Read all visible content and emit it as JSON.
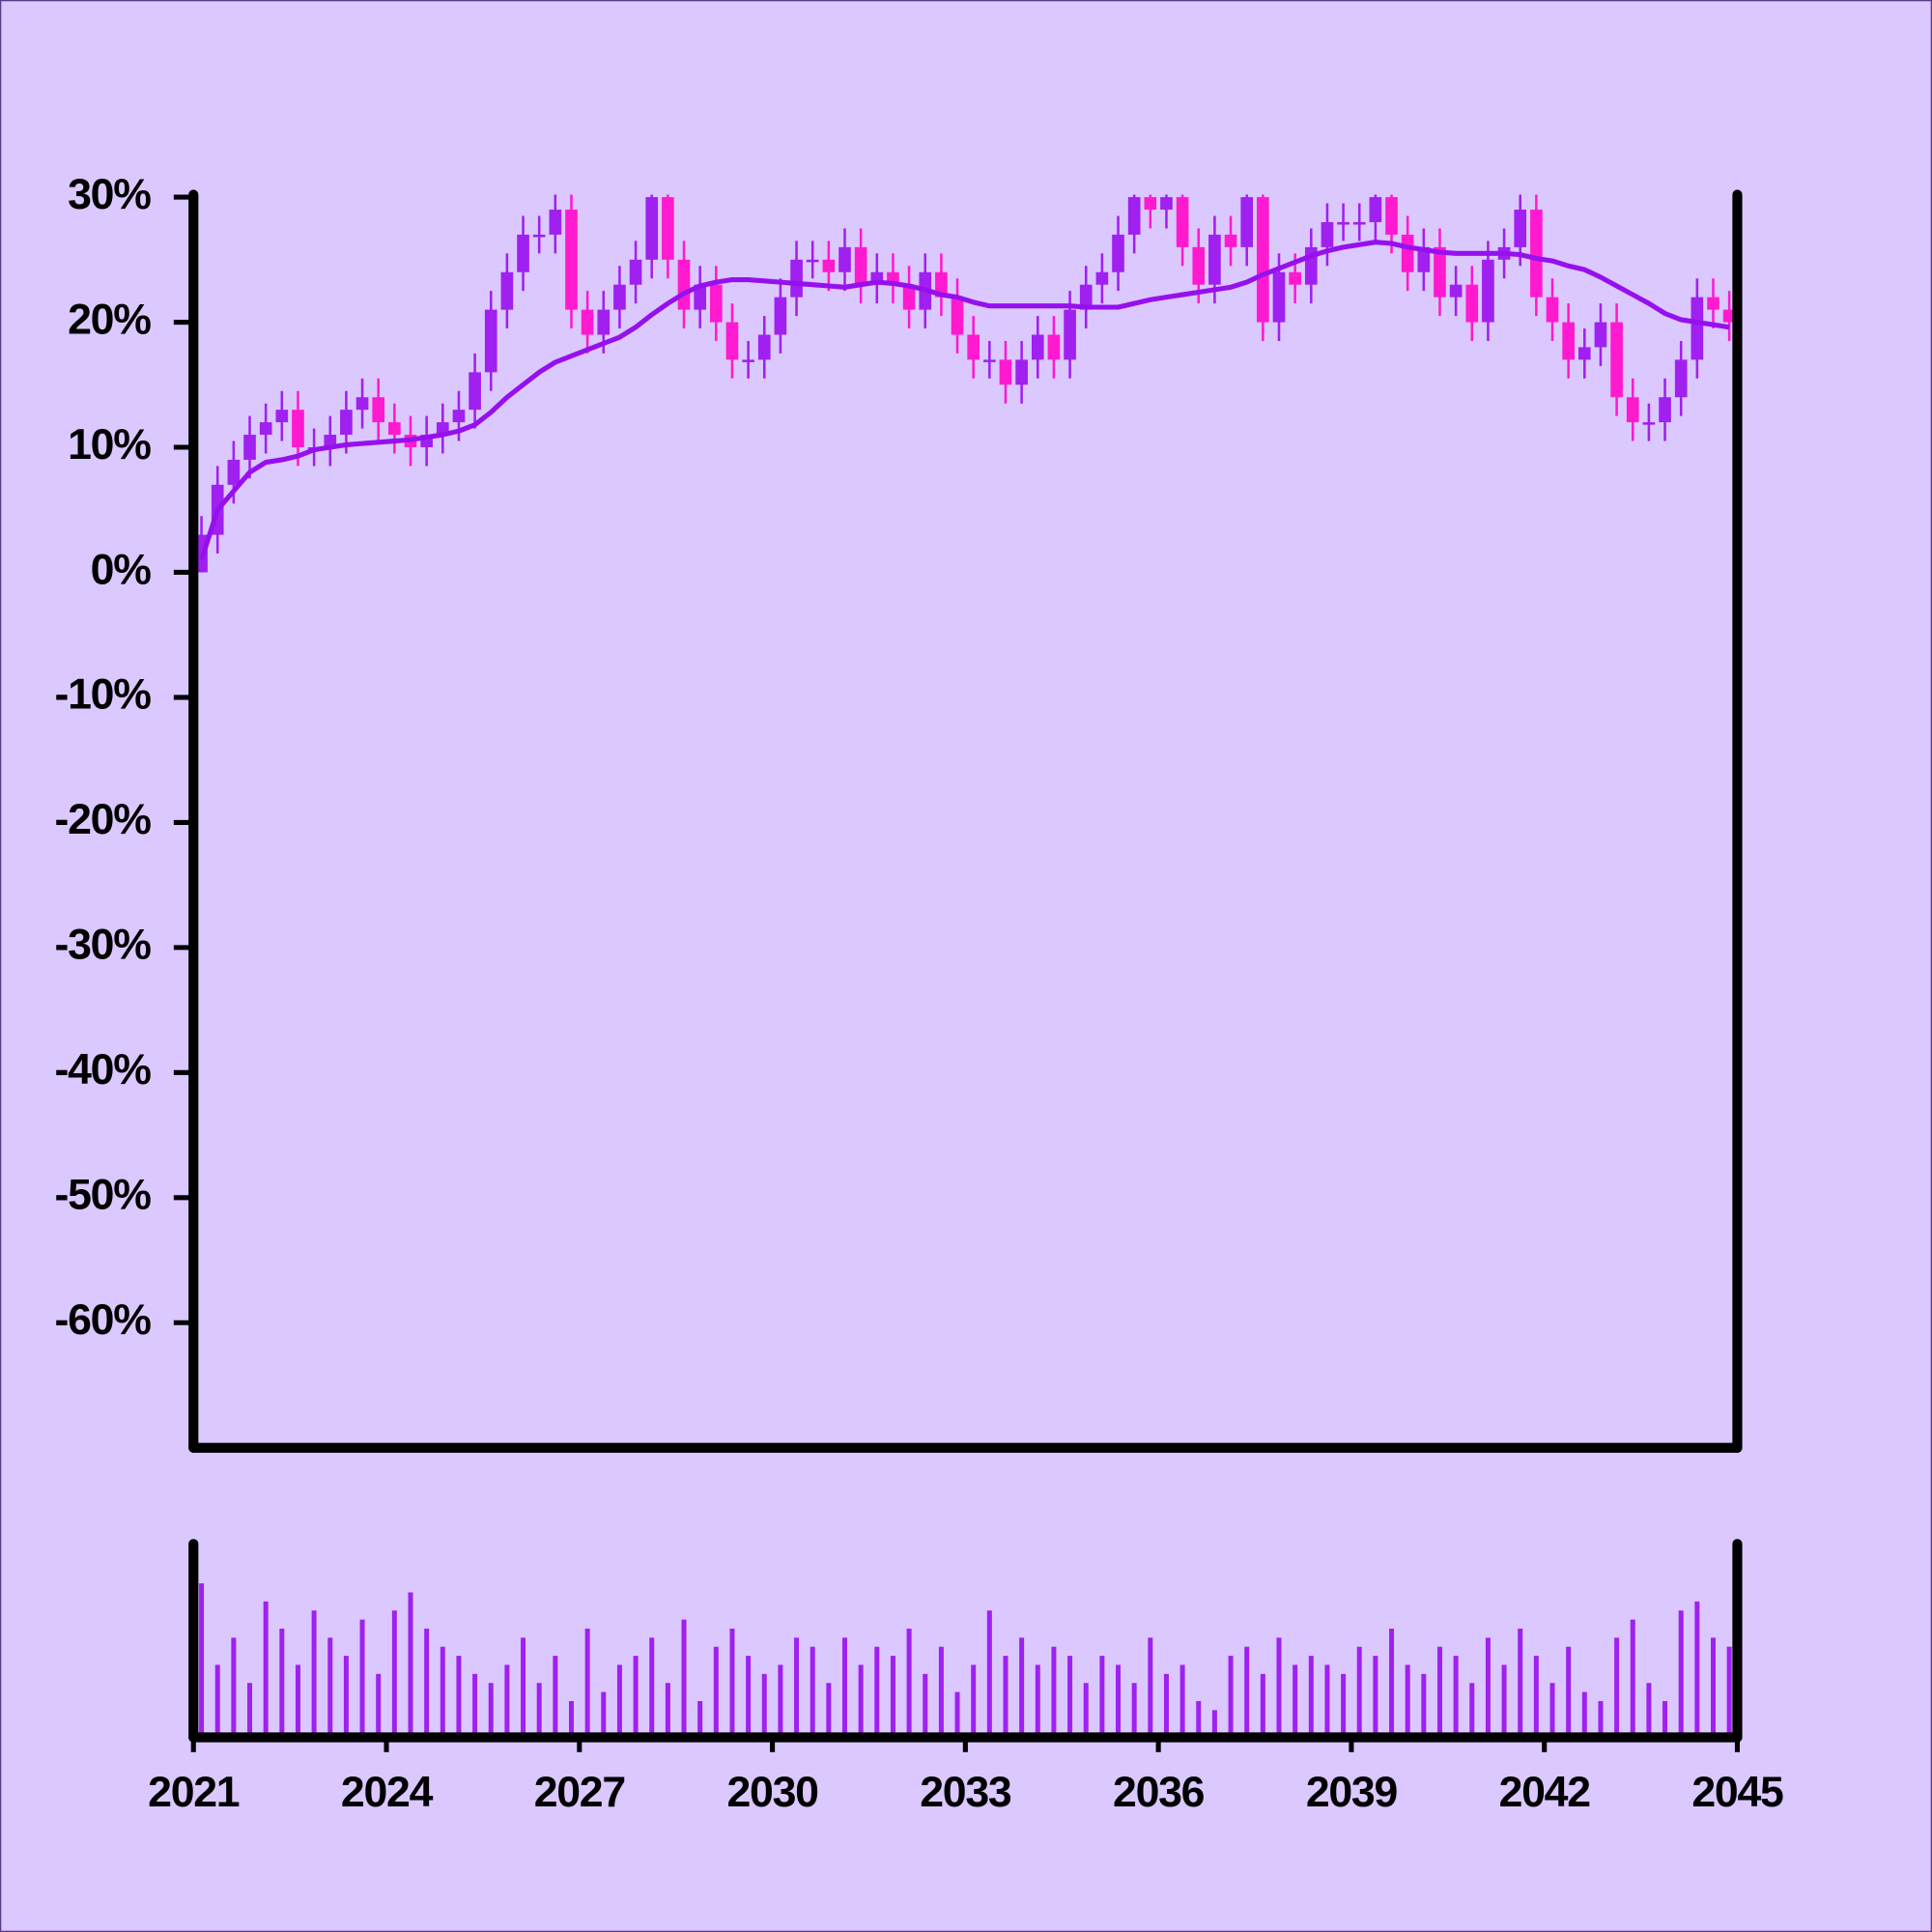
{
  "chart_data": {
    "type": "candlestick",
    "x": [
      2021.125,
      2021.375,
      2021.625,
      2021.875,
      2022.125,
      2022.375,
      2022.625,
      2022.875,
      2023.125,
      2023.375,
      2023.625,
      2023.875,
      2024.125,
      2024.375,
      2024.625,
      2024.875,
      2025.125,
      2025.375,
      2025.625,
      2025.875,
      2026.125,
      2026.375,
      2026.625,
      2026.875,
      2027.125,
      2027.375,
      2027.625,
      2027.875,
      2028.125,
      2028.375,
      2028.625,
      2028.875,
      2029.125,
      2029.375,
      2029.625,
      2029.875,
      2030.125,
      2030.375,
      2030.625,
      2030.875,
      2031.125,
      2031.375,
      2031.625,
      2031.875,
      2032.125,
      2032.375,
      2032.625,
      2032.875,
      2033.125,
      2033.375,
      2033.625,
      2033.875,
      2034.125,
      2034.375,
      2034.625,
      2034.875,
      2035.125,
      2035.375,
      2035.625,
      2035.875,
      2036.125,
      2036.375,
      2036.625,
      2036.875,
      2037.125,
      2037.375,
      2037.625,
      2037.875,
      2038.125,
      2038.375,
      2038.625,
      2038.875,
      2039.125,
      2039.375,
      2039.625,
      2039.875,
      2040.125,
      2040.375,
      2040.625,
      2040.875,
      2041.125,
      2041.375,
      2041.625,
      2041.875,
      2042.125,
      2042.375,
      2042.625,
      2042.875,
      2043.125,
      2043.375,
      2043.625,
      2043.875,
      2044.125,
      2044.375,
      2044.625,
      2044.875
    ],
    "open": [
      0,
      3,
      7,
      9,
      11,
      12,
      13,
      10,
      10,
      11,
      13,
      14,
      12,
      11,
      10,
      11,
      12,
      13,
      16,
      21,
      24,
      27,
      27,
      29,
      21,
      19,
      21,
      23,
      25,
      30,
      25,
      21,
      23,
      20,
      17,
      17,
      19,
      22,
      25,
      25,
      24,
      26,
      23,
      24,
      23,
      21,
      24,
      22,
      19,
      17,
      17,
      15,
      17,
      19,
      17,
      21,
      23,
      24,
      27,
      30,
      29,
      30,
      26,
      23,
      27,
      26,
      30,
      20,
      24,
      23,
      26,
      28,
      28,
      28,
      30,
      27,
      24,
      26,
      22,
      23,
      20,
      25,
      26,
      29,
      22,
      20,
      17,
      18,
      20,
      14,
      12,
      12,
      14,
      17,
      22,
      21
    ],
    "high": [
      4.5,
      8.5,
      10.5,
      12.5,
      13.5,
      14.5,
      14.5,
      11.5,
      12.5,
      14.5,
      15.5,
      15.5,
      13.5,
      12.5,
      12.5,
      13.5,
      14.5,
      17.5,
      22.5,
      25.5,
      28.5,
      28.5,
      30.5,
      30.5,
      22.5,
      22.5,
      24.5,
      26.5,
      31.5,
      31.5,
      26.5,
      24.5,
      24.5,
      21.5,
      18.5,
      20.5,
      23.5,
      26.5,
      26.5,
      26.5,
      27.5,
      27.5,
      25.5,
      25.5,
      24.5,
      25.5,
      25.5,
      23.5,
      20.5,
      18.5,
      18.5,
      18.5,
      20.5,
      20.5,
      22.5,
      24.5,
      25.5,
      28.5,
      31.5,
      31.5,
      31.5,
      31.5,
      27.5,
      28.5,
      28.5,
      31.5,
      31.5,
      25.5,
      25.5,
      27.5,
      29.5,
      29.5,
      29.5,
      31.5,
      31.5,
      28.5,
      27.5,
      27.5,
      24.5,
      24.5,
      26.5,
      27.5,
      30.5,
      30.5,
      23.5,
      21.5,
      19.5,
      21.5,
      21.5,
      15.5,
      13.5,
      15.5,
      18.5,
      23.5,
      23.5,
      22.5
    ],
    "low": [
      0,
      1.5,
      5.5,
      7.5,
      9.5,
      10.5,
      8.5,
      8.5,
      8.5,
      9.5,
      11.5,
      10.5,
      9.5,
      8.5,
      8.5,
      9.5,
      10.5,
      11.5,
      14.5,
      19.5,
      22.5,
      25.5,
      25.5,
      19.5,
      17.5,
      17.5,
      19.5,
      21.5,
      23.5,
      23.5,
      19.5,
      19.5,
      18.5,
      15.5,
      15.5,
      15.5,
      17.5,
      20.5,
      23.5,
      22.5,
      22.5,
      21.5,
      21.5,
      21.5,
      19.5,
      19.5,
      20.5,
      17.5,
      15.5,
      15.5,
      13.5,
      13.5,
      15.5,
      15.5,
      15.5,
      19.5,
      21.5,
      22.5,
      25.5,
      27.5,
      27.5,
      24.5,
      21.5,
      21.5,
      24.5,
      24.5,
      18.5,
      18.5,
      21.5,
      21.5,
      24.5,
      26.5,
      26.5,
      26.5,
      25.5,
      22.5,
      22.5,
      20.5,
      20.5,
      18.5,
      18.5,
      23.5,
      24.5,
      20.5,
      18.5,
      15.5,
      15.5,
      16.5,
      12.5,
      10.5,
      10.5,
      10.5,
      12.5,
      15.5,
      19.5,
      18.5
    ],
    "close": [
      3,
      7,
      9,
      11,
      12,
      13,
      10,
      10,
      11,
      13,
      14,
      12,
      11,
      10,
      11,
      12,
      13,
      16,
      21,
      24,
      27,
      27,
      29,
      21,
      19,
      21,
      23,
      25,
      30,
      25,
      21,
      23,
      20,
      17,
      17,
      19,
      22,
      25,
      25,
      24,
      26,
      23,
      24,
      23,
      21,
      24,
      22,
      19,
      17,
      17,
      15,
      17,
      19,
      17,
      21,
      23,
      24,
      27,
      30,
      29,
      30,
      26,
      23,
      27,
      26,
      30,
      20,
      24,
      23,
      26,
      28,
      28,
      28,
      30,
      27,
      24,
      26,
      22,
      23,
      20,
      25,
      26,
      29,
      22,
      20,
      17,
      18,
      20,
      14,
      12,
      12,
      14,
      17,
      22,
      21,
      20
    ],
    "up_color": "#a020f0",
    "down_color": "#ff1ad0",
    "moving_average": {
      "color": "#9610ee",
      "values": [
        1,
        5,
        6.5,
        8,
        8.8,
        9,
        9.3,
        9.8,
        10,
        10.2,
        10.3,
        10.4,
        10.5,
        10.6,
        10.8,
        11,
        11.3,
        11.8,
        12.8,
        14,
        15,
        16,
        16.8,
        17.3,
        17.8,
        18.3,
        18.8,
        19.6,
        20.6,
        21.5,
        22.3,
        22.9,
        23.2,
        23.4,
        23.4,
        23.3,
        23.2,
        23.1,
        23,
        22.9,
        22.8,
        23,
        23.2,
        23.1,
        22.9,
        22.6,
        22.2,
        22,
        21.6,
        21.3,
        21.3,
        21.3,
        21.3,
        21.3,
        21.3,
        21.2,
        21.2,
        21.2,
        21.5,
        21.8,
        22,
        22.2,
        22.4,
        22.6,
        22.8,
        23.2,
        23.8,
        24.3,
        24.8,
        25.3,
        25.7,
        26,
        26.2,
        26.4,
        26.3,
        26,
        25.8,
        25.6,
        25.5,
        25.5,
        25.5,
        25.5,
        25.4,
        25.1,
        24.9,
        24.5,
        24.2,
        23.6,
        22.9,
        22.2,
        21.5,
        20.7,
        20.2,
        20,
        19.8,
        19.6
      ]
    },
    "volume": {
      "color": "#a020f0",
      "ylim": [
        0,
        100
      ],
      "values": [
        85,
        40,
        55,
        30,
        75,
        60,
        40,
        70,
        55,
        45,
        65,
        35,
        70,
        80,
        60,
        50,
        45,
        35,
        30,
        40,
        55,
        30,
        45,
        20,
        60,
        25,
        40,
        45,
        55,
        30,
        65,
        20,
        50,
        60,
        45,
        35,
        40,
        55,
        50,
        30,
        55,
        40,
        50,
        45,
        60,
        35,
        50,
        25,
        40,
        70,
        45,
        55,
        40,
        50,
        45,
        30,
        45,
        40,
        30,
        55,
        35,
        40,
        20,
        15,
        45,
        50,
        35,
        55,
        40,
        45,
        40,
        35,
        50,
        45,
        60,
        40,
        35,
        50,
        45,
        30,
        55,
        40,
        60,
        45,
        30,
        50,
        25,
        20,
        55,
        65,
        30,
        20,
        70,
        75,
        55,
        50
      ]
    },
    "xlim": [
      2021,
      2045
    ],
    "xticks": [
      2021,
      2024,
      2027,
      2030,
      2033,
      2036,
      2039,
      2042,
      2045
    ],
    "ylim": [
      -70,
      30
    ],
    "yticks": [
      {
        "value": -60,
        "label": "-60%"
      },
      {
        "value": -50,
        "label": "-50%"
      },
      {
        "value": -40,
        "label": "-40%"
      },
      {
        "value": -30,
        "label": "-30%"
      },
      {
        "value": -20,
        "label": "-20%"
      },
      {
        "value": -10,
        "label": "-10%"
      },
      {
        "value": 0,
        "label": "0%"
      },
      {
        "value": 10,
        "label": "10%"
      },
      {
        "value": 20,
        "label": "20%"
      },
      {
        "value": 30,
        "label": "30%"
      }
    ]
  }
}
